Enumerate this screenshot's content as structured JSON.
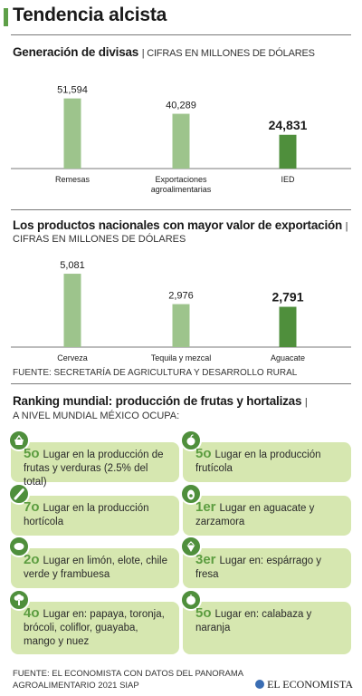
{
  "header": {
    "title": "Tendencia alcista"
  },
  "chart_data": [
    {
      "type": "bar",
      "title": "Generación de divisas",
      "subtitle": "CIFRAS EN MILLONES DE DÓLARES",
      "categories": [
        "Remesas",
        "Exportaciones agroalimentarias",
        "IED"
      ],
      "category_lines": [
        [
          "Remesas"
        ],
        [
          "Exportaciones",
          "agroalimentarias"
        ],
        [
          "IED"
        ]
      ],
      "values": [
        51594,
        40289,
        24831
      ],
      "labels": [
        "51,594",
        "40,289",
        "24,831"
      ],
      "highlight_index": 2,
      "ylim": [
        0,
        60000
      ]
    },
    {
      "type": "bar",
      "title": "Los productos nacionales con mayor valor de exportación",
      "subtitle": "CIFRAS EN MILLONES DE DÓLARES",
      "categories": [
        "Cerveza",
        "Tequila y mezcal",
        "Aguacate"
      ],
      "category_lines": [
        [
          "Cerveza"
        ],
        [
          "Tequila y mezcal"
        ],
        [
          "Aguacate"
        ]
      ],
      "values": [
        5081,
        2976,
        2791
      ],
      "labels": [
        "5,081",
        "2,976",
        "2,791"
      ],
      "highlight_index": 2,
      "ylim": [
        0,
        5900
      ]
    }
  ],
  "colors": {
    "bar": "#9dc48c",
    "bar_highlight": "#4f8f3c",
    "accent": "#5e9f48",
    "card": "#d6e7b0"
  },
  "fuente1": "FUENTE: SECRETARÍA DE AGRICULTURA Y DESARROLLO RURAL",
  "ranking": {
    "title": "Ranking mundial: producción de frutas y hortalizas",
    "subtitle": "A NIVEL MUNDIAL MÉXICO OCUPA:",
    "items": [
      {
        "rank": "5o",
        "text": "Lugar en la producción de frutas y verduras (2.5% del total)",
        "icon": "basket-icon"
      },
      {
        "rank": "5o",
        "text": "Lugar en la producción frutícola",
        "icon": "apple-icon"
      },
      {
        "rank": "7o",
        "text": "Lugar en la producción hortícola",
        "icon": "vegetable-icon"
      },
      {
        "rank": "1er",
        "text": "Lugar en aguacate y zarzamora",
        "icon": "avocado-icon"
      },
      {
        "rank": "2o",
        "text": "Lugar en limón, elote, chile verde y frambuesa",
        "icon": "lemon-icon"
      },
      {
        "rank": "3er",
        "text": "Lugar en: espárrago y fresa",
        "icon": "strawberry-icon"
      },
      {
        "rank": "4o",
        "text": "Lugar en: papaya, toronja, brócoli, coliflor, guayaba, mango y nuez",
        "icon": "broccoli-icon"
      },
      {
        "rank": "5o",
        "text": "Lugar en: calabaza y naranja",
        "icon": "orange-icon"
      }
    ]
  },
  "footer": {
    "source_line1": "FUENTE: EL ECONOMISTA CON DATOS DEL PANORAMA",
    "source_line2": "AGROALIMENTARIO 2021 SIAP",
    "brand": "EL ECONOMISTA"
  }
}
